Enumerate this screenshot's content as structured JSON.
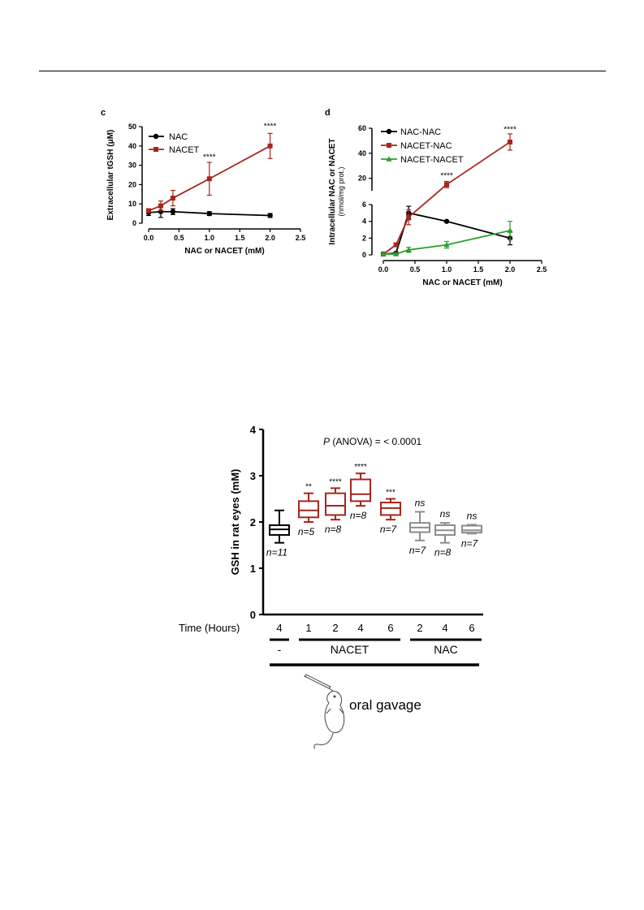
{
  "colors": {
    "NAC": "#000000",
    "NACET": "#a5261e",
    "green": "#2ca02c",
    "gray": "#8c8c8c",
    "stars_red": "#e02020"
  },
  "chart_data": [
    {
      "type": "line",
      "panel_label": "c",
      "ylabel": "Extracellular tGSH (μM)",
      "xlabel": "NAC or NACET (mM)",
      "xlim": [
        0,
        2.5
      ],
      "ylim": [
        0,
        50
      ],
      "xticks": [
        "0.0",
        "0.5",
        "1.0",
        "1.5",
        "2.0",
        "2.5"
      ],
      "yticks": [
        "0",
        "10",
        "20",
        "30",
        "40",
        "50"
      ],
      "legend": "top-left",
      "series": [
        {
          "name": "NAC",
          "color": "#000000",
          "marker": "circle",
          "points": [
            {
              "x": 0,
              "y": 5.5,
              "err": 1.5
            },
            {
              "x": 0.2,
              "y": 6.0,
              "err": 3.0
            },
            {
              "x": 0.4,
              "y": 6.0,
              "err": 1.5
            },
            {
              "x": 1.0,
              "y": 5.0,
              "err": 1.0
            },
            {
              "x": 2.0,
              "y": 4.0,
              "err": 1.0
            }
          ]
        },
        {
          "name": "NACET",
          "color": "#a5261e",
          "marker": "square",
          "points": [
            {
              "x": 0,
              "y": 6.5,
              "err": 1.0
            },
            {
              "x": 0.2,
              "y": 9.0,
              "err": 2.5
            },
            {
              "x": 0.4,
              "y": 13.0,
              "err": 4.0
            },
            {
              "x": 1.0,
              "y": 23.0,
              "err": 8.5
            },
            {
              "x": 2.0,
              "y": 40.0,
              "err": 6.5
            }
          ]
        }
      ],
      "annotations": [
        {
          "x": 1.0,
          "y": 33,
          "text": "****"
        },
        {
          "x": 2.0,
          "y": 49,
          "text": "****"
        }
      ]
    },
    {
      "type": "line",
      "panel_label": "d",
      "ylabel": "Intracellular NAC or NACET",
      "ylabel_unit": "(nmol/mg prot.)",
      "xlabel": "NAC or NACET (mM)",
      "xlim": [
        0,
        2.5
      ],
      "y_broken": {
        "lower": [
          0,
          6
        ],
        "upper": [
          10,
          60
        ]
      },
      "xticks": [
        "0.0",
        "0.5",
        "1.0",
        "1.5",
        "2.0",
        "2.5"
      ],
      "yticks_lower": [
        "0",
        "2",
        "4",
        "6"
      ],
      "yticks_upper": [
        "20",
        "40",
        "60"
      ],
      "legend": "top-left",
      "series": [
        {
          "name": "NAC-NAC",
          "color": "#000000",
          "marker": "circle",
          "points": [
            {
              "x": 0,
              "y": 0.1,
              "err": 0.1
            },
            {
              "x": 0.2,
              "y": 0.2,
              "err": 0.1
            },
            {
              "x": 0.4,
              "y": 5.0,
              "err": 0.8
            },
            {
              "x": 1.0,
              "y": 4.0,
              "err": 0.1
            },
            {
              "x": 2.0,
              "y": 2.0,
              "err": 0.8
            }
          ]
        },
        {
          "name": "NACET-NAC",
          "color": "#a5261e",
          "marker": "square",
          "points": [
            {
              "x": 0,
              "y": 0.1,
              "err": 0.1
            },
            {
              "x": 0.2,
              "y": 1.2,
              "err": 0.2
            },
            {
              "x": 0.4,
              "y": 4.5,
              "err": 0.9
            },
            {
              "x": 1.0,
              "y": 15.0,
              "err": 2.5
            },
            {
              "x": 2.0,
              "y": 49.0,
              "err": 6.5
            }
          ]
        },
        {
          "name": "NACET-NACET",
          "color": "#2ca02c",
          "marker": "triangle",
          "points": [
            {
              "x": 0,
              "y": 0.1,
              "err": 0.1
            },
            {
              "x": 0.2,
              "y": 0.1,
              "err": 0.1
            },
            {
              "x": 0.4,
              "y": 0.6,
              "err": 0.3
            },
            {
              "x": 1.0,
              "y": 1.2,
              "err": 0.4
            },
            {
              "x": 2.0,
              "y": 2.9,
              "err": 1.1
            }
          ]
        }
      ],
      "annotations": [
        {
          "x": 1.0,
          "y": 20,
          "text": "****"
        },
        {
          "x": 2.0,
          "y": 57,
          "text": "****"
        }
      ]
    },
    {
      "type": "box",
      "ylabel": "GSH in rat eyes (mM)",
      "ylim": [
        0,
        4
      ],
      "yticks": [
        "0",
        "1",
        "2",
        "3",
        "4"
      ],
      "xlabel": "Time (Hours)",
      "title": "P (ANOVA) = < 0.0001",
      "title_italic": "P",
      "title_rest": " (ANOVA) = < 0.0001",
      "groups": [
        {
          "label": "-",
          "from": 0,
          "to": 0
        },
        {
          "label": "NACET",
          "from": 1,
          "to": 4
        },
        {
          "label": "NAC",
          "from": 5,
          "to": 7
        }
      ],
      "footer": "oral gavage",
      "boxes": [
        {
          "time": "4",
          "group": "control",
          "color": "#000000",
          "min": 1.55,
          "q1": 1.72,
          "median": 1.84,
          "q3": 1.93,
          "max": 2.25,
          "n": "n=11",
          "sig": ""
        },
        {
          "time": "1",
          "group": "NACET",
          "color": "#a5261e",
          "min": 2.0,
          "q1": 2.1,
          "median": 2.25,
          "q3": 2.45,
          "max": 2.62,
          "n": "n=5",
          "sig": "**"
        },
        {
          "time": "2",
          "group": "NACET",
          "color": "#a5261e",
          "min": 2.05,
          "q1": 2.15,
          "median": 2.35,
          "q3": 2.62,
          "max": 2.73,
          "n": "n=8",
          "sig": "****"
        },
        {
          "time": "4",
          "group": "NACET",
          "color": "#a5261e",
          "min": 2.35,
          "q1": 2.45,
          "median": 2.6,
          "q3": 2.92,
          "max": 3.05,
          "n": "n=8",
          "sig": "****"
        },
        {
          "time": "6",
          "group": "NACET",
          "color": "#a5261e",
          "min": 2.05,
          "q1": 2.15,
          "median": 2.3,
          "q3": 2.42,
          "max": 2.5,
          "n": "n=7",
          "sig": "***"
        },
        {
          "time": "2",
          "group": "NAC",
          "color": "#8c8c8c",
          "min": 1.6,
          "q1": 1.78,
          "median": 1.88,
          "q3": 1.98,
          "max": 2.22,
          "n": "n=7",
          "sig": "ns"
        },
        {
          "time": "4",
          "group": "NAC",
          "color": "#8c8c8c",
          "min": 1.55,
          "q1": 1.72,
          "median": 1.82,
          "q3": 1.93,
          "max": 1.98,
          "n": "n=8",
          "sig": "ns"
        },
        {
          "time": "6",
          "group": "NAC",
          "color": "#8c8c8c",
          "min": 1.75,
          "q1": 1.77,
          "median": 1.82,
          "q3": 1.92,
          "max": 1.94,
          "n": "n=7",
          "sig": "ns"
        }
      ]
    }
  ]
}
